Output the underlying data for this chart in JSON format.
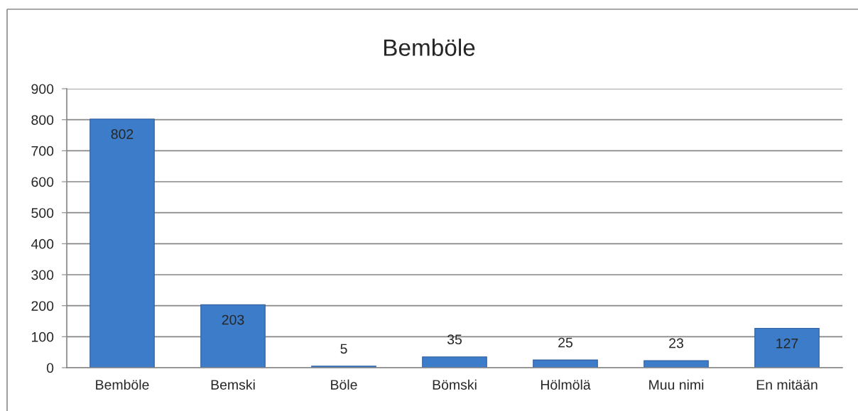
{
  "chart_data": {
    "type": "bar",
    "title": "Bemböle",
    "categories": [
      "Bemböle",
      "Bemski",
      "Böle",
      "Bömski",
      "Hölmölä",
      "Muu nimi",
      "En mitään"
    ],
    "values": [
      802,
      203,
      5,
      35,
      25,
      23,
      127
    ],
    "color": "#3d7cc9",
    "ylim": [
      0,
      900
    ],
    "yticks": [
      0,
      100,
      200,
      300,
      400,
      500,
      600,
      700,
      800,
      900
    ],
    "grid": "y",
    "data_labels": true
  }
}
